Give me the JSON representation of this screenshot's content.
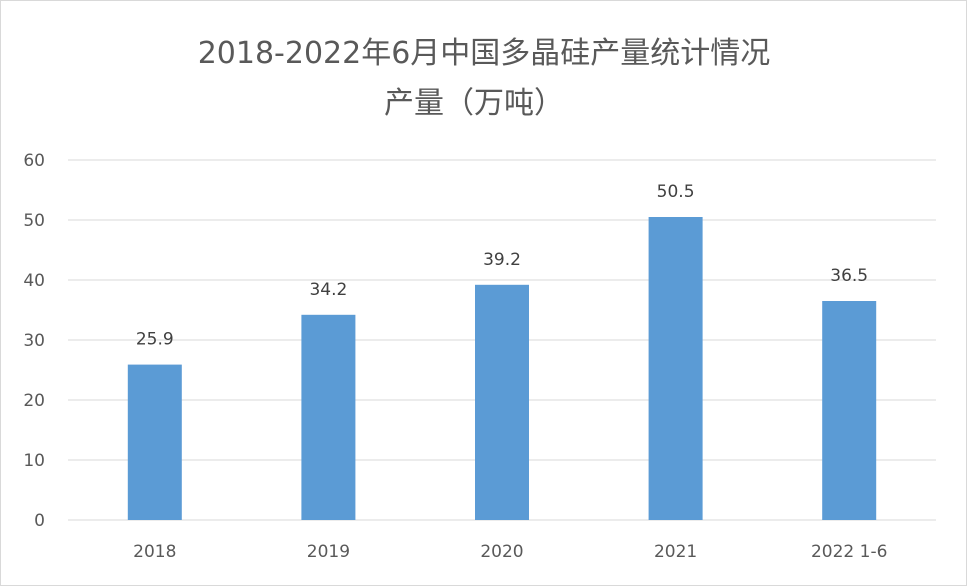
{
  "chart_data": {
    "type": "bar",
    "title": "2018-2022年6月中国多晶硅产量统计情况",
    "subtitle": "产量（万吨）",
    "categories": [
      "2018",
      "2019",
      "2020",
      "2021",
      "2022 1-6"
    ],
    "series": [
      {
        "values": [
          25.9,
          34.2,
          39.2,
          50.5,
          36.5
        ]
      }
    ],
    "data_labels": [
      "25.9",
      "34.2",
      "39.2",
      "50.5",
      "36.5"
    ],
    "y_ticks": [
      "0",
      "10",
      "20",
      "30",
      "40",
      "50",
      "60"
    ],
    "ylim": [
      0,
      60
    ],
    "xlabel": "",
    "ylabel": "",
    "grid": true,
    "legend": "none",
    "bar_color": "#5b9bd5",
    "grid_color": "#d9d9d9",
    "text_color": "#595959"
  }
}
